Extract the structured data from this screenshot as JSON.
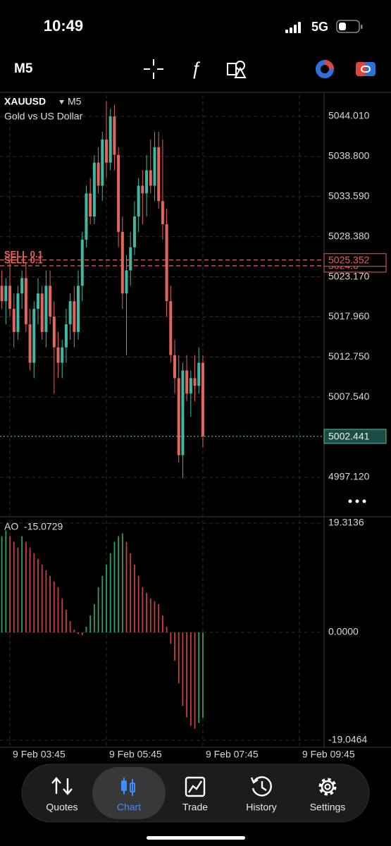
{
  "status_bar": {
    "time": "10:49",
    "network": "5G"
  },
  "toolbar": {
    "timeframe": "M5"
  },
  "chart_data": [
    {
      "type": "candlestick",
      "symbol": "XAUUSD",
      "timeframe": "M5",
      "description": "Gold vs US Dollar",
      "x": [
        215,
        220,
        225,
        230,
        235,
        240,
        245,
        250,
        255,
        260,
        265,
        270,
        275,
        280,
        285,
        290,
        295,
        300,
        305,
        310,
        315,
        320,
        325,
        330,
        335,
        340,
        345,
        350,
        355,
        360,
        365,
        370,
        375,
        380,
        385,
        390,
        395,
        400,
        405,
        410,
        415,
        420,
        425,
        430,
        435,
        440,
        445,
        450,
        455,
        460,
        465
      ],
      "open": [
        5022,
        5020,
        5022,
        5019,
        5016,
        5021,
        5023,
        5017,
        5012,
        5019,
        5021,
        5016,
        5022,
        5018,
        5014,
        5012,
        5014,
        5017,
        5020,
        5016,
        5022,
        5028,
        5034,
        5031,
        5038,
        5035,
        5041,
        5038,
        5044,
        5039,
        5029,
        5021,
        5024,
        5027,
        5031,
        5035,
        5034,
        5037,
        5035,
        5040,
        5033,
        5030,
        5020,
        5013,
        5010,
        5000,
        5011,
        5008,
        5010,
        5009,
        5012
      ],
      "high": [
        5024,
        5023,
        5025,
        5021,
        5022,
        5024,
        5025,
        5019,
        5020,
        5023,
        5022,
        5024,
        5024,
        5020,
        5016,
        5015,
        5019,
        5021,
        5022,
        5024,
        5029,
        5035,
        5036,
        5039,
        5040,
        5042,
        5046,
        5045,
        5045.5,
        5040,
        5031,
        5026,
        5029,
        5033,
        5036,
        5037,
        5039,
        5041,
        5042,
        5042,
        5041,
        5032,
        5022,
        5015,
        5013,
        5012,
        5013,
        5011,
        5013,
        5014,
        5013
      ],
      "low": [
        5019,
        5017,
        5018,
        5014,
        5015,
        5019,
        5016,
        5011,
        5010,
        5017,
        5015,
        5014,
        5017,
        5008,
        5010,
        5010,
        5012,
        5015,
        5014,
        5015,
        5020,
        5027,
        5030,
        5030,
        5034,
        5033,
        5036,
        5037,
        5037,
        5027,
        5019,
        5013,
        5022,
        5026,
        5029,
        5030,
        5031,
        5034,
        5033,
        5032,
        5028,
        5018,
        5012,
        5008,
        4999,
        4997,
        5007,
        5005,
        5007,
        5008,
        5001
      ],
      "close": [
        5020,
        5022,
        5019,
        5016,
        5021,
        5023,
        5017,
        5012,
        5019,
        5021,
        5016,
        5022,
        5018,
        5014,
        5012,
        5014,
        5017,
        5020,
        5016,
        5022,
        5028,
        5034,
        5031,
        5038,
        5035,
        5041,
        5038,
        5044,
        5039,
        5029,
        5021,
        5024,
        5027,
        5031,
        5035,
        5034,
        5037,
        5035,
        5040,
        5033,
        5030,
        5020,
        5013,
        5010,
        5000,
        5011,
        5008,
        5010,
        5009,
        5012,
        5002.441
      ],
      "up_color": "#3fb8a3",
      "down_color": "#e4655c",
      "xlim": [
        212.7,
        614
      ],
      "ylim": [
        4992.27,
        5046.76
      ],
      "yticks": [
        {
          "value": 5044.01,
          "label": "5044.010"
        },
        {
          "value": 5038.8,
          "label": "5038.800"
        },
        {
          "value": 5033.59,
          "label": "5033.590"
        },
        {
          "value": 5028.38,
          "label": "5028.380"
        },
        {
          "value": 5023.17,
          "label": "5023.170"
        },
        {
          "value": 5017.96,
          "label": "5017.960"
        },
        {
          "value": 5012.75,
          "label": "5012.750"
        },
        {
          "value": 5007.54,
          "label": "5007.540"
        },
        {
          "value": 4997.12,
          "label": "4997.120"
        }
      ],
      "grid": true,
      "orders": [
        {
          "label": "SELL 0.1",
          "price": 5025.352
        },
        {
          "label": "SELL 0.1",
          "price": 5024.6
        }
      ],
      "order_color": "#e4655c",
      "current_price": 5002.441,
      "current_color": "#4fc3b0"
    },
    {
      "type": "bar",
      "name": "AO",
      "current": -15.0729,
      "x": [
        215,
        220,
        225,
        230,
        235,
        240,
        245,
        250,
        255,
        260,
        265,
        270,
        275,
        280,
        285,
        290,
        295,
        300,
        305,
        310,
        315,
        320,
        325,
        330,
        335,
        340,
        345,
        350,
        355,
        360,
        365,
        370,
        375,
        380,
        385,
        390,
        395,
        400,
        405,
        410,
        415,
        420,
        425,
        430,
        435,
        440,
        445,
        450,
        455,
        460,
        465
      ],
      "values": [
        17,
        18,
        17,
        16,
        15,
        17,
        16,
        15,
        14,
        13,
        12,
        11,
        10,
        9,
        8,
        6,
        4,
        2,
        0.5,
        -0.3,
        -0.5,
        1,
        3,
        5,
        8,
        10,
        12,
        14,
        16,
        17,
        17.5,
        16,
        14,
        12,
        10,
        8,
        7,
        6,
        5.5,
        5,
        3,
        1,
        -2,
        -5,
        -9,
        -13,
        -15,
        -16.5,
        -17,
        -16,
        -15.0729
      ],
      "up_color": "#2f9e6a",
      "down_color": "#c8403a",
      "xlim": [
        212.7,
        614
      ],
      "ylim": [
        -20.06,
        20.19
      ],
      "yticks": [
        19.3136,
        {
          "value": 0,
          "label": "0.0000"
        },
        -19.0464
      ],
      "xticks": [
        {
          "value": 225,
          "label": "9 Feb 03:45"
        },
        {
          "value": 345,
          "label": "9 Feb 05:45"
        },
        {
          "value": 465,
          "label": "9 Feb 07:45"
        },
        {
          "value": 585,
          "label": "9 Feb 09:45"
        }
      ]
    }
  ],
  "nav": {
    "items": [
      "Quotes",
      "Chart",
      "Trade",
      "History",
      "Settings"
    ]
  }
}
